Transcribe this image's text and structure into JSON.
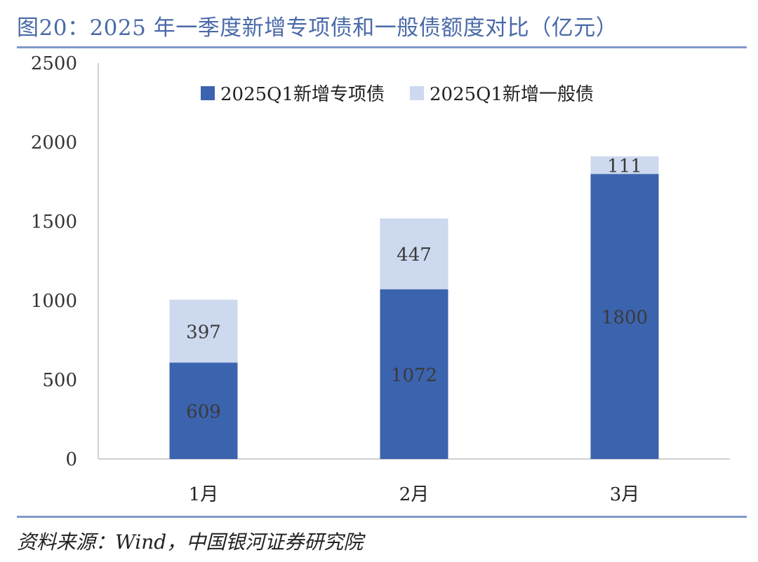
{
  "title": "图20：2025 年一季度新增专项债和一般债额度对比（亿元）",
  "source": "资料来源：Wind，中国银河证券研究院",
  "colors": {
    "series1": "#3c63ae",
    "series2": "#cdd9ef",
    "rule": "#7f9ac8",
    "title": "#4a6aa8"
  },
  "chart_data": {
    "type": "bar",
    "stacked": true,
    "categories": [
      "1月",
      "2月",
      "3月"
    ],
    "series": [
      {
        "name": "2025Q1新增专项债",
        "values": [
          609,
          1072,
          1800
        ]
      },
      {
        "name": "2025Q1新增一般债",
        "values": [
          397,
          447,
          111
        ]
      }
    ],
    "ylim": [
      0,
      2500
    ],
    "yticks": [
      "0",
      "500",
      "1000",
      "1500",
      "2000",
      "2500"
    ],
    "legend": "top-center",
    "grid": false
  }
}
